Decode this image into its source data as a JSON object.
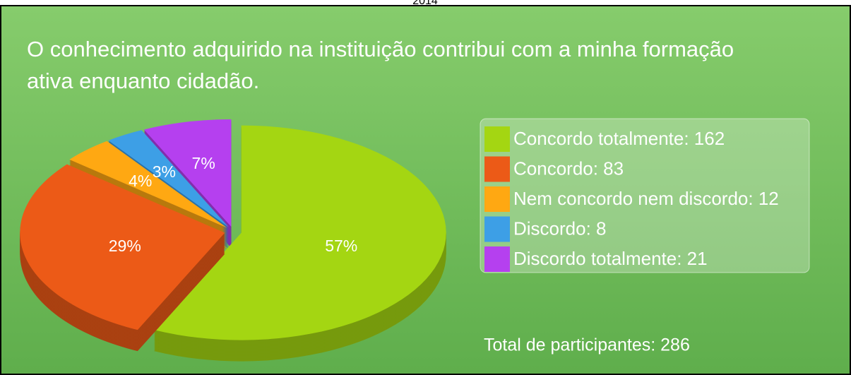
{
  "chart_data": {
    "type": "pie",
    "top_label": "2014",
    "title": [
      "O conhecimento adquirido na instituição contribui com a minha formação",
      "ativa enquanto cidadão."
    ],
    "categories": [
      "Concordo totalmente: 162",
      "Concordo: 83",
      "Nem concordo nem discordo: 12",
      "Discordo: 8",
      "Discordo totalmente: 21"
    ],
    "values": [
      57,
      29,
      4,
      3,
      7
    ],
    "value_labels": [
      "57%",
      "29%",
      "4%",
      "3%",
      "7%"
    ],
    "colors": [
      "#a4d612",
      "#ec5a17",
      "#ffa812",
      "#3d9fe6",
      "#b540ef"
    ],
    "annotation": "Total de participantes: 286",
    "legend": "right"
  }
}
